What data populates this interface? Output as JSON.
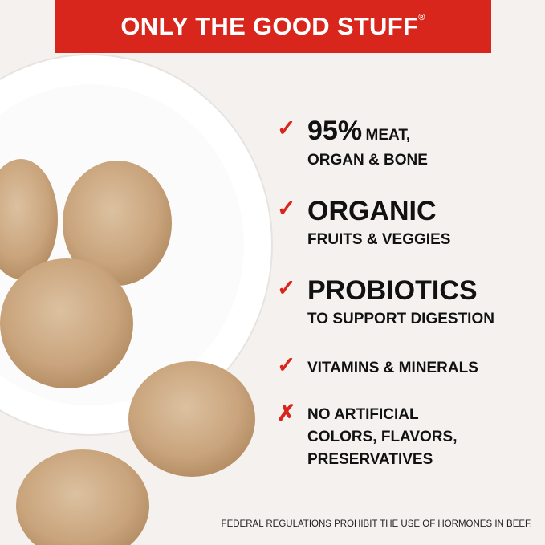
{
  "banner": {
    "title": "ONLY THE GOOD STUFF",
    "mark": "®"
  },
  "colors": {
    "accent": "#d9261c",
    "background": "#f4f1ee"
  },
  "items": [
    {
      "icon": "check-icon",
      "big": "95%",
      "inline": "MEAT,",
      "lines": [
        "ORGAN & BONE"
      ]
    },
    {
      "icon": "check-icon",
      "big": "ORGANIC",
      "lines": [
        "FRUITS & VEGGIES"
      ]
    },
    {
      "icon": "check-icon",
      "big": "PROBIOTICS",
      "lines": [
        "TO SUPPORT DIGESTION"
      ]
    },
    {
      "icon": "check-icon",
      "lines": [
        "VITAMINS & MINERALS"
      ]
    },
    {
      "icon": "x-icon",
      "lines": [
        "NO ARTIFICIAL",
        "COLORS, FLAVORS,",
        "PRESERVATIVES"
      ]
    }
  ],
  "footnote": "FEDERAL REGULATIONS PROHIBIT THE USE OF HORMONES IN BEEF."
}
